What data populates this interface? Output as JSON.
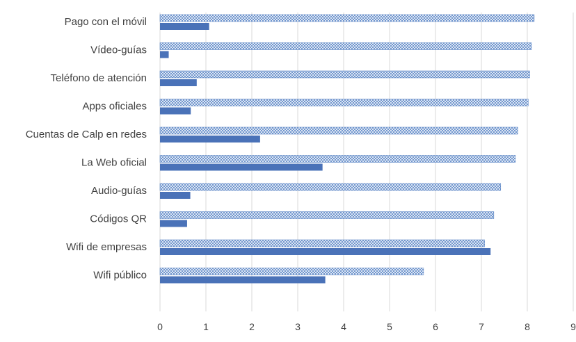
{
  "chart_data": {
    "type": "bar",
    "orientation": "horizontal",
    "categories": [
      "Pago con el móvil",
      "Vídeo-guías",
      "Teléfono de atención",
      "Apps oficiales",
      "Cuentas de Calp en redes",
      "La Web oficial",
      "Audio-guías",
      "Códigos QR",
      "Wifi de empresas",
      "Wifi público"
    ],
    "series": [
      {
        "style": "crosshatch",
        "values": [
          8.15,
          8.09,
          8.05,
          8.02,
          7.79,
          7.74,
          7.42,
          7.27,
          7.07,
          5.74
        ]
      },
      {
        "style": "solid",
        "values": [
          1.07,
          0.19,
          0.8,
          0.67,
          2.18,
          3.54,
          0.66,
          0.59,
          7.2,
          3.6
        ]
      }
    ],
    "xlim": [
      0,
      9
    ],
    "xticks": [
      "0",
      "1",
      "2",
      "3",
      "4",
      "5",
      "6",
      "7",
      "8",
      "9"
    ],
    "grid": true,
    "legend": false,
    "colors": {
      "solid": "#4a72b8",
      "hatch": "#5b86c6",
      "grid": "#d9d9d9",
      "text": "#404040"
    }
  }
}
